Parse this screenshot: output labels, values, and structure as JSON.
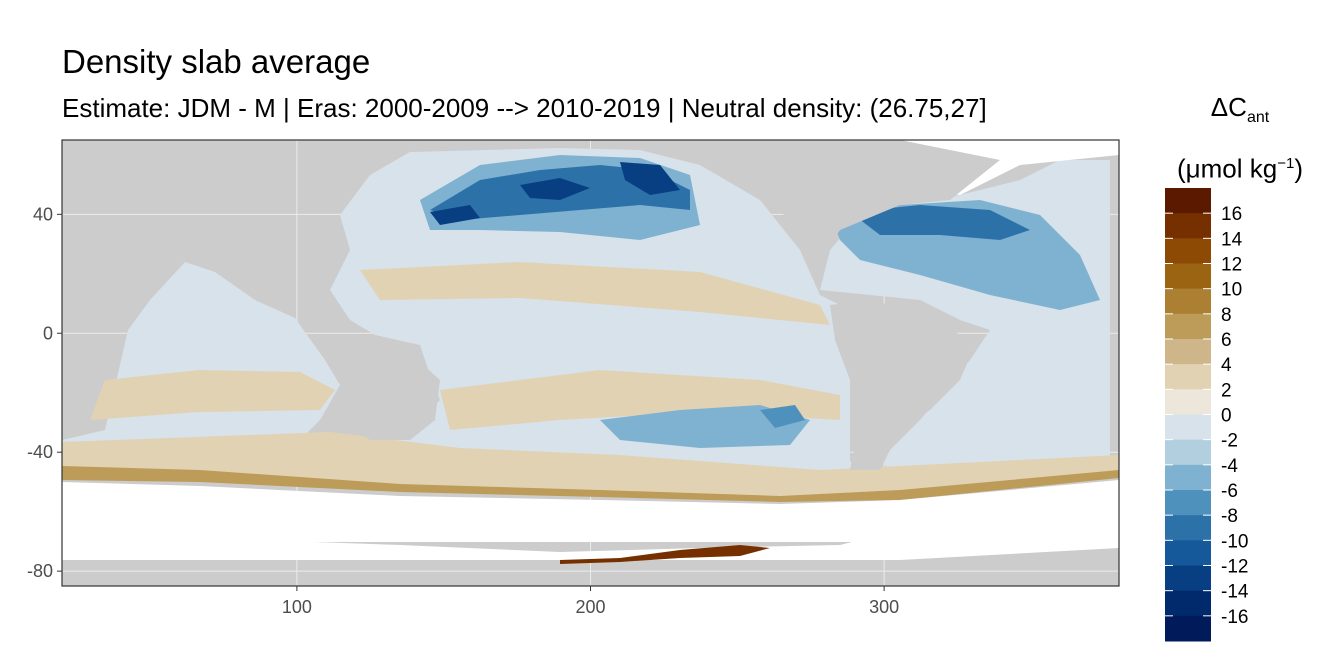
{
  "chart_data": {
    "type": "heatmap",
    "title": "Density slab average",
    "subtitle": "Estimate: JDM - M | Eras: 2000-2009 --> 2010-2019 | Neutral density: (26.75,27]",
    "xlabel": "",
    "ylabel": "",
    "xlim": [
      20,
      380
    ],
    "ylim": [
      -85,
      65
    ],
    "x_ticks": [
      100,
      200,
      300
    ],
    "y_ticks": [
      40,
      0,
      -40,
      -80
    ],
    "grid": true,
    "legend": {
      "title_main": "ΔC",
      "title_sub": "ant",
      "title_units_open": "(μmol kg",
      "title_units_sup": "−1",
      "title_units_close": ")",
      "placement": "right",
      "labels": [
        "16",
        "14",
        "12",
        "10",
        "8",
        "6",
        "4",
        "2",
        "0",
        "-2",
        "-4",
        "-6",
        "-8",
        "-10",
        "-12",
        "-14",
        "-16"
      ],
      "colors": [
        "#5b1a00",
        "#763000",
        "#8c4a05",
        "#9a6412",
        "#ab8032",
        "#bd9c5a",
        "#cfb68a",
        "#e2d2b4",
        "#ede6db",
        "#d7e2ea",
        "#b2cfe0",
        "#7fb2d0",
        "#4f91bd",
        "#2c72a9",
        "#15599a",
        "#083f82",
        "#002a6c",
        "#001a5a"
      ]
    },
    "colors": {
      "land": "#cccccc",
      "no_data": "#ffffff",
      "panel_border": "#333333",
      "grid": "#ebebeb"
    }
  }
}
